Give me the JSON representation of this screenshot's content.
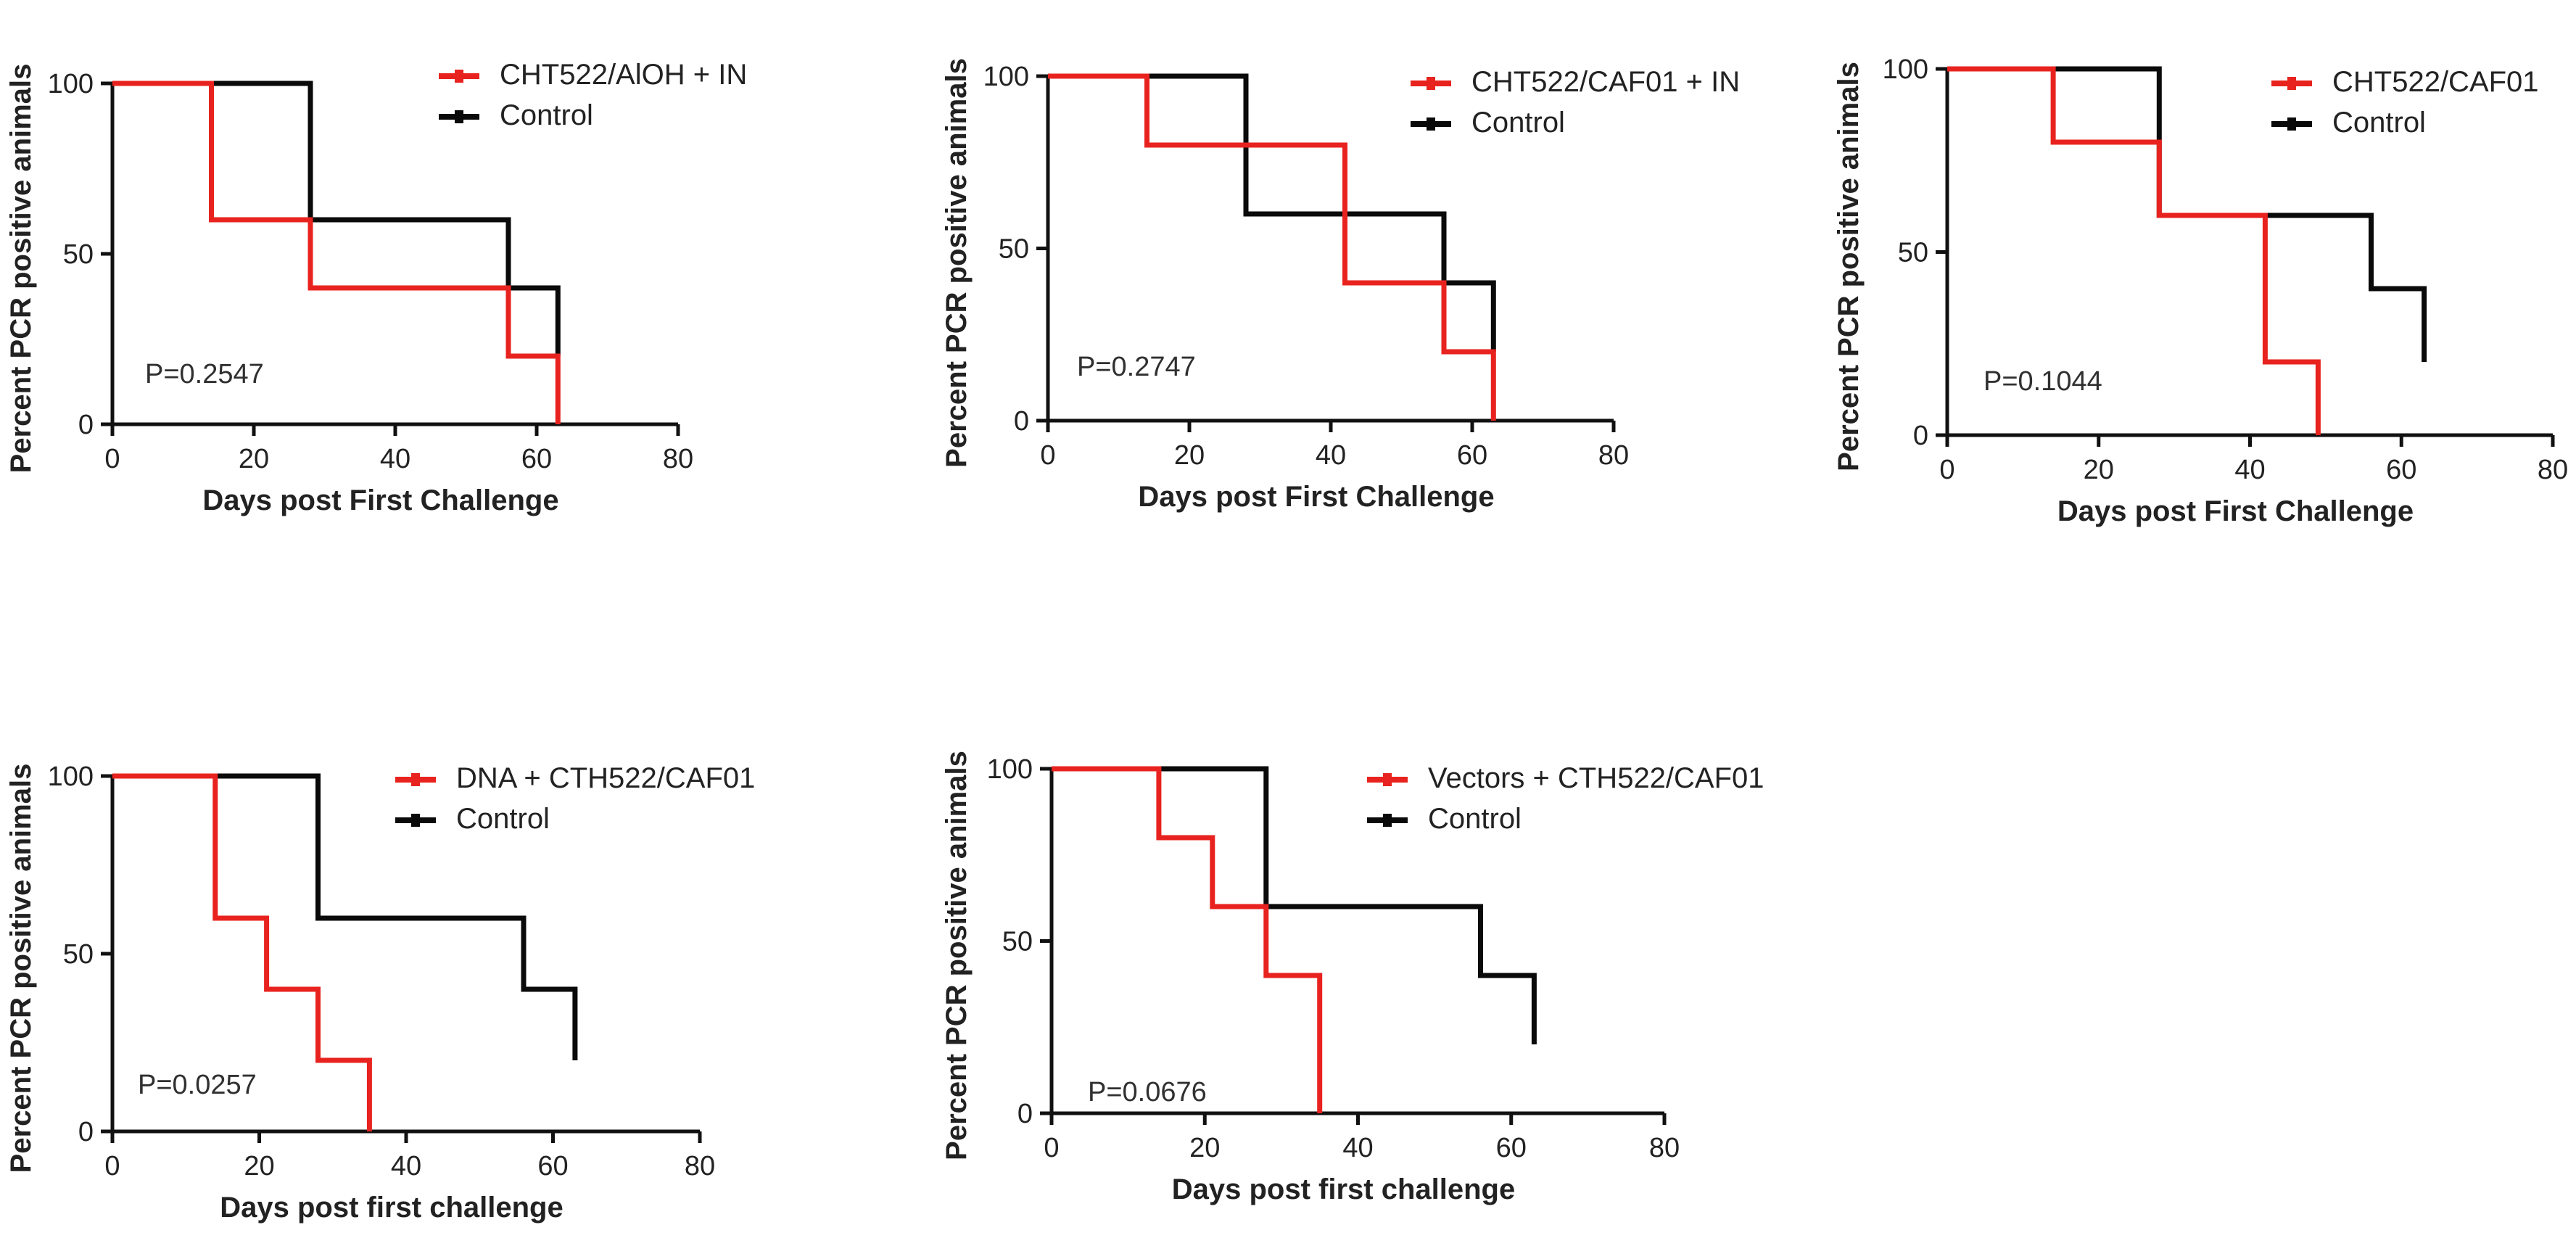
{
  "colors": {
    "treatment": "#e8231f",
    "control": "#0a0a0a",
    "axis": "#111111",
    "text": "#222222"
  },
  "chart_data": [
    {
      "type": "line",
      "step": true,
      "title": "",
      "xlabel": "Days post First Challenge",
      "ylabel": "Percent PCR positive animals",
      "xlim": [
        0,
        80
      ],
      "ylim": [
        0,
        100
      ],
      "xticks": [
        0,
        20,
        40,
        60,
        80
      ],
      "yticks": [
        0,
        50,
        100
      ],
      "annotation": "P=0.2547",
      "legend_position": "top-right",
      "series": [
        {
          "name": "CHT522/AlOH + IN",
          "color": "treatment",
          "x": [
            0,
            14,
            14,
            28,
            28,
            56,
            56,
            63,
            63
          ],
          "y": [
            100,
            100,
            60,
            60,
            40,
            40,
            20,
            20,
            0
          ]
        },
        {
          "name": "Control",
          "color": "control",
          "x": [
            0,
            28,
            28,
            56,
            56,
            63,
            63
          ],
          "y": [
            100,
            100,
            60,
            60,
            40,
            40,
            20
          ]
        }
      ]
    },
    {
      "type": "line",
      "step": true,
      "title": "",
      "xlabel": "Days post First Challenge",
      "ylabel": "Percent PCR positive animals",
      "xlim": [
        0,
        80
      ],
      "ylim": [
        0,
        100
      ],
      "xticks": [
        0,
        20,
        40,
        60,
        80
      ],
      "yticks": [
        0,
        50,
        100
      ],
      "annotation": "P=0.2747",
      "legend_position": "top-right",
      "series": [
        {
          "name": "CHT522/CAF01 + IN",
          "color": "treatment",
          "x": [
            0,
            14,
            14,
            42,
            42,
            56,
            56,
            63,
            63
          ],
          "y": [
            100,
            100,
            80,
            80,
            40,
            40,
            20,
            20,
            0
          ]
        },
        {
          "name": "Control",
          "color": "control",
          "x": [
            0,
            28,
            28,
            56,
            56,
            63,
            63
          ],
          "y": [
            100,
            100,
            60,
            60,
            40,
            40,
            20
          ]
        }
      ]
    },
    {
      "type": "line",
      "step": true,
      "title": "",
      "xlabel": "Days post First Challenge",
      "ylabel": "Percent PCR positive animals",
      "xlim": [
        0,
        80
      ],
      "ylim": [
        0,
        100
      ],
      "xticks": [
        0,
        20,
        40,
        60,
        80
      ],
      "yticks": [
        0,
        50,
        100
      ],
      "annotation": "P=0.1044",
      "legend_position": "top-right",
      "series": [
        {
          "name": "CHT522/CAF01",
          "color": "treatment",
          "x": [
            0,
            14,
            14,
            28,
            28,
            42,
            42,
            49,
            49
          ],
          "y": [
            100,
            100,
            80,
            80,
            60,
            60,
            20,
            20,
            0
          ]
        },
        {
          "name": "Control",
          "color": "control",
          "x": [
            0,
            28,
            28,
            56,
            56,
            63,
            63
          ],
          "y": [
            100,
            100,
            60,
            60,
            40,
            40,
            20
          ]
        }
      ]
    },
    {
      "type": "line",
      "step": true,
      "title": "",
      "xlabel": "Days post first challenge",
      "ylabel": "Percent PCR positive animals",
      "xlim": [
        0,
        80
      ],
      "ylim": [
        0,
        100
      ],
      "xticks": [
        0,
        20,
        40,
        60,
        80
      ],
      "yticks": [
        0,
        50,
        100
      ],
      "annotation": "P=0.0257",
      "legend_position": "top-right",
      "series": [
        {
          "name": "DNA + CTH522/CAF01",
          "color": "treatment",
          "x": [
            0,
            14,
            14,
            21,
            21,
            28,
            28,
            35,
            35
          ],
          "y": [
            100,
            100,
            60,
            60,
            40,
            40,
            20,
            20,
            0
          ]
        },
        {
          "name": "Control",
          "color": "control",
          "x": [
            0,
            28,
            28,
            56,
            56,
            63,
            63
          ],
          "y": [
            100,
            100,
            60,
            60,
            40,
            40,
            20
          ]
        }
      ]
    },
    {
      "type": "line",
      "step": true,
      "title": "",
      "xlabel": "Days post first challenge",
      "ylabel": "Percent PCR positive animals",
      "xlim": [
        0,
        80
      ],
      "ylim": [
        0,
        100
      ],
      "xticks": [
        0,
        20,
        40,
        60,
        80
      ],
      "yticks": [
        0,
        50,
        100
      ],
      "annotation": "P=0.0676",
      "legend_position": "top-right",
      "series": [
        {
          "name": "Vectors + CTH522/CAF01",
          "color": "treatment",
          "x": [
            0,
            14,
            14,
            21,
            21,
            28,
            28,
            35,
            35
          ],
          "y": [
            100,
            100,
            80,
            80,
            60,
            60,
            40,
            40,
            0
          ]
        },
        {
          "name": "Control",
          "color": "control",
          "x": [
            0,
            28,
            28,
            56,
            56,
            63,
            63
          ],
          "y": [
            100,
            100,
            60,
            60,
            40,
            40,
            20
          ]
        }
      ]
    }
  ]
}
